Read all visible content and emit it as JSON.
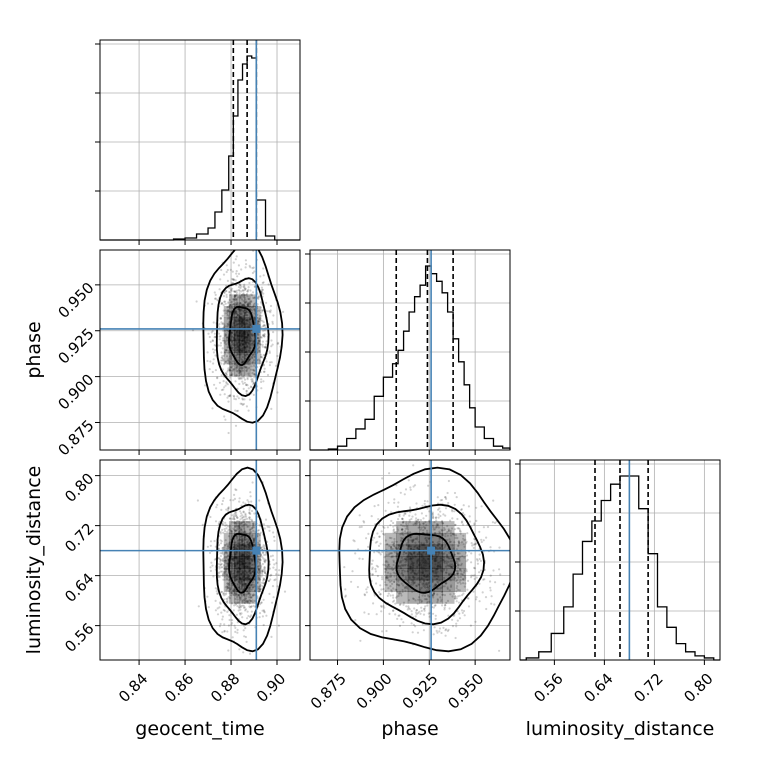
{
  "chart_data": {
    "type": "corner",
    "parameters": [
      "geocent_time",
      "phase",
      "luminosity_distance"
    ],
    "axis_labels": {
      "geocent_time": "geocent_time",
      "phase": "phase",
      "luminosity_distance": "luminosity_distance"
    },
    "ranges": {
      "geocent_time": [
        0.823,
        0.91
      ],
      "phase": [
        0.86,
        0.969
      ],
      "luminosity_distance": [
        0.505,
        0.825
      ]
    },
    "ticks": {
      "geocent_time": [
        "0.84",
        "0.86",
        "0.88",
        "0.90"
      ],
      "phase": [
        "0.875",
        "0.900",
        "0.925",
        "0.950"
      ],
      "luminosity_distance": [
        "0.56",
        "0.64",
        "0.72",
        "0.80"
      ]
    },
    "truths": {
      "geocent_time": 0.891,
      "phase": 0.926,
      "luminosity_distance": 0.68
    },
    "quantiles": {
      "geocent_time": [
        0.881,
        0.887,
        0.891
      ],
      "phase": [
        0.907,
        0.924,
        0.938
      ],
      "luminosity_distance": [
        0.625,
        0.665,
        0.71
      ]
    },
    "histograms": {
      "geocent_time": {
        "edges": [
          0.855,
          0.86,
          0.865,
          0.87,
          0.873,
          0.876,
          0.879,
          0.881,
          0.883,
          0.885,
          0.887,
          0.889,
          0.891,
          0.895,
          0.899
        ],
        "counts": [
          0.005,
          0.01,
          0.03,
          0.06,
          0.14,
          0.25,
          0.42,
          0.62,
          0.8,
          0.88,
          0.92,
          0.91,
          0.2,
          0.02
        ]
      },
      "phase": {
        "edges": [
          0.87,
          0.875,
          0.88,
          0.885,
          0.89,
          0.895,
          0.9,
          0.905,
          0.908,
          0.911,
          0.914,
          0.917,
          0.92,
          0.923,
          0.926,
          0.929,
          0.932,
          0.935,
          0.938,
          0.941,
          0.944,
          0.947,
          0.95,
          0.955,
          0.96,
          0.965,
          0.969
        ],
        "counts": [
          0.005,
          0.02,
          0.06,
          0.11,
          0.16,
          0.28,
          0.38,
          0.45,
          0.52,
          0.62,
          0.72,
          0.8,
          0.86,
          0.96,
          0.92,
          0.88,
          0.82,
          0.72,
          0.58,
          0.46,
          0.34,
          0.22,
          0.12,
          0.06,
          0.02,
          0.01
        ]
      },
      "luminosity_distance": {
        "edges": [
          0.515,
          0.535,
          0.555,
          0.575,
          0.59,
          0.605,
          0.62,
          0.635,
          0.65,
          0.665,
          0.68,
          0.695,
          0.71,
          0.725,
          0.74,
          0.755,
          0.77,
          0.785,
          0.8,
          0.815
        ],
        "counts": [
          0.01,
          0.04,
          0.13,
          0.26,
          0.42,
          0.58,
          0.68,
          0.78,
          0.86,
          0.9,
          0.9,
          0.74,
          0.52,
          0.26,
          0.16,
          0.08,
          0.04,
          0.02,
          0.01
        ]
      }
    },
    "contour_levels": [
      0.39,
      0.86,
      0.99
    ],
    "colors": {
      "truth": "#4682b4",
      "histogram": "#000000",
      "quantile": "#000000",
      "grid": "#b0b0b0",
      "scatter": "#000000",
      "density": "#000000"
    },
    "grid": true
  }
}
